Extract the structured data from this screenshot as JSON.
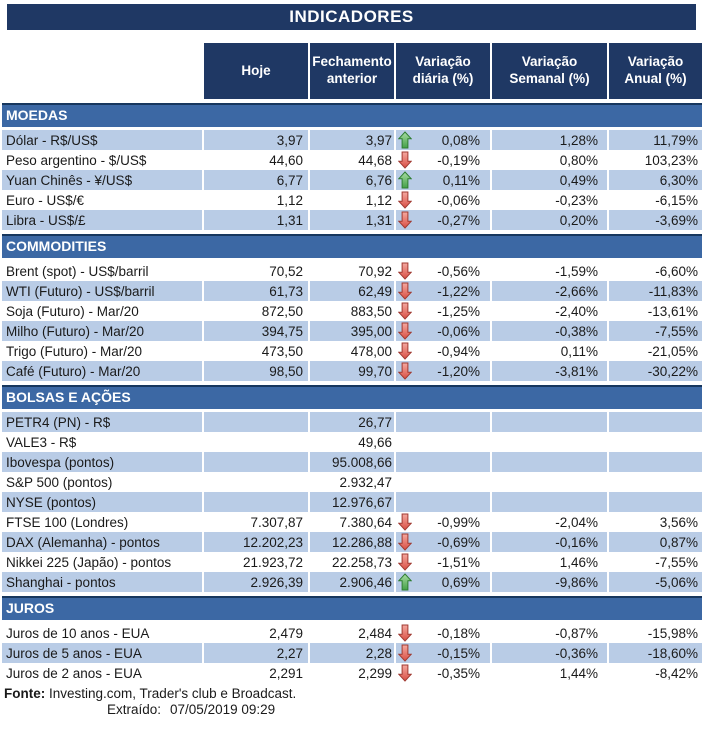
{
  "chart_data": {
    "type": "table",
    "title": "INDICADORES",
    "columns": [
      "Hoje",
      "Fechamento anterior",
      "Variação diária (%)",
      "Variação Semanal (%)",
      "Variação Anual (%)"
    ],
    "colors": {
      "title_bg": "#1F3864",
      "header_bg": "#1F3864",
      "section_bg": "#3C68A4",
      "section_top_border": "#17375E",
      "row_shade": "#B9CCE6",
      "up_arrow_green": "#44A048",
      "down_arrow_red": "#D94F44"
    },
    "sections": [
      {
        "name": "MOEDAS",
        "first_row_shaded": true,
        "rows": [
          {
            "label": "Dólar - R$/US$",
            "hoje": "3,97",
            "fechamento": "3,97",
            "arrow": "up",
            "diaria": "0,08%",
            "semanal": "1,28%",
            "anual": "11,79%"
          },
          {
            "label": "Peso argentino - $/US$",
            "hoje": "44,60",
            "fechamento": "44,68",
            "arrow": "down",
            "diaria": "-0,19%",
            "semanal": "0,80%",
            "anual": "103,23%"
          },
          {
            "label": "Yuan Chinês - ¥/US$",
            "hoje": "6,77",
            "fechamento": "6,76",
            "arrow": "up",
            "diaria": "0,11%",
            "semanal": "0,49%",
            "anual": "6,30%"
          },
          {
            "label": "Euro - US$/€",
            "hoje": "1,12",
            "fechamento": "1,12",
            "arrow": "down",
            "diaria": "-0,06%",
            "semanal": "-0,23%",
            "anual": "-6,15%"
          },
          {
            "label": "Libra - US$/£",
            "hoje": "1,31",
            "fechamento": "1,31",
            "arrow": "down",
            "diaria": "-0,27%",
            "semanal": "0,20%",
            "anual": "-3,69%"
          }
        ]
      },
      {
        "name": "COMMODITIES",
        "first_row_shaded": false,
        "rows": [
          {
            "label": "Brent (spot) - US$/barril",
            "hoje": "70,52",
            "fechamento": "70,92",
            "arrow": "down",
            "diaria": "-0,56%",
            "semanal": "-1,59%",
            "anual": "-6,60%"
          },
          {
            "label": "WTI (Futuro) - US$/barril",
            "hoje": "61,73",
            "fechamento": "62,49",
            "arrow": "down",
            "diaria": "-1,22%",
            "semanal": "-2,66%",
            "anual": "-11,83%"
          },
          {
            "label": "Soja (Futuro) - Mar/20",
            "hoje": "872,50",
            "fechamento": "883,50",
            "arrow": "down",
            "diaria": "-1,25%",
            "semanal": "-2,40%",
            "anual": "-13,61%"
          },
          {
            "label": "Milho (Futuro) - Mar/20",
            "hoje": "394,75",
            "fechamento": "395,00",
            "arrow": "down",
            "diaria": "-0,06%",
            "semanal": "-0,38%",
            "anual": "-7,55%"
          },
          {
            "label": "Trigo (Futuro) - Mar/20",
            "hoje": "473,50",
            "fechamento": "478,00",
            "arrow": "down",
            "diaria": "-0,94%",
            "semanal": "0,11%",
            "anual": "-21,05%"
          },
          {
            "label": "Café (Futuro) - Mar/20",
            "hoje": "98,50",
            "fechamento": "99,70",
            "arrow": "down",
            "diaria": "-1,20%",
            "semanal": "-3,81%",
            "anual": "-30,22%"
          }
        ]
      },
      {
        "name": "BOLSAS E AÇÕES",
        "first_row_shaded": true,
        "rows": [
          {
            "label": "PETR4 (PN) - R$",
            "hoje": "",
            "fechamento": "26,77",
            "arrow": "",
            "diaria": "",
            "semanal": "",
            "anual": ""
          },
          {
            "label": "VALE3 - R$",
            "hoje": "",
            "fechamento": "49,66",
            "arrow": "",
            "diaria": "",
            "semanal": "",
            "anual": ""
          },
          {
            "label": "Ibovespa (pontos)",
            "hoje": "",
            "fechamento": "95.008,66",
            "arrow": "",
            "diaria": "",
            "semanal": "",
            "anual": ""
          },
          {
            "label": "S&P 500 (pontos)",
            "hoje": "",
            "fechamento": "2.932,47",
            "arrow": "",
            "diaria": "",
            "semanal": "",
            "anual": ""
          },
          {
            "label": "NYSE (pontos)",
            "hoje": "",
            "fechamento": "12.976,67",
            "arrow": "",
            "diaria": "",
            "semanal": "",
            "anual": ""
          },
          {
            "label": "FTSE 100 (Londres)",
            "hoje": "7.307,87",
            "fechamento": "7.380,64",
            "arrow": "down",
            "diaria": "-0,99%",
            "semanal": "-2,04%",
            "anual": "3,56%"
          },
          {
            "label": "DAX (Alemanha) - pontos",
            "hoje": "12.202,23",
            "fechamento": "12.286,88",
            "arrow": "down",
            "diaria": "-0,69%",
            "semanal": "-0,16%",
            "anual": "0,87%"
          },
          {
            "label": "Nikkei 225 (Japão) - pontos",
            "hoje": "21.923,72",
            "fechamento": "22.258,73",
            "arrow": "down",
            "diaria": "-1,51%",
            "semanal": "1,46%",
            "anual": "-7,55%"
          },
          {
            "label": "Shanghai - pontos",
            "hoje": "2.926,39",
            "fechamento": "2.906,46",
            "arrow": "up",
            "diaria": "0,69%",
            "semanal": "-9,86%",
            "anual": "-5,06%"
          }
        ]
      },
      {
        "name": "JUROS",
        "first_row_shaded": false,
        "rows": [
          {
            "label": "Juros de 10 anos - EUA",
            "hoje": "2,479",
            "fechamento": "2,484",
            "arrow": "down",
            "diaria": "-0,18%",
            "semanal": "-0,87%",
            "anual": "-15,98%"
          },
          {
            "label": "Juros de 5 anos - EUA",
            "hoje": "2,27",
            "fechamento": "2,28",
            "arrow": "down",
            "diaria": "-0,15%",
            "semanal": "-0,36%",
            "anual": "-18,60%"
          },
          {
            "label": "Juros de 2 anos - EUA",
            "hoje": "2,291",
            "fechamento": "2,299",
            "arrow": "down",
            "diaria": "-0,35%",
            "semanal": "1,44%",
            "anual": "-8,42%"
          }
        ]
      }
    ],
    "footer": {
      "fonte_label": "Fonte:",
      "fonte_text": "Investing.com, Trader's club e Broadcast.",
      "extraido_label": "Extraído:",
      "extraido_value": "07/05/2019 09:29"
    }
  }
}
